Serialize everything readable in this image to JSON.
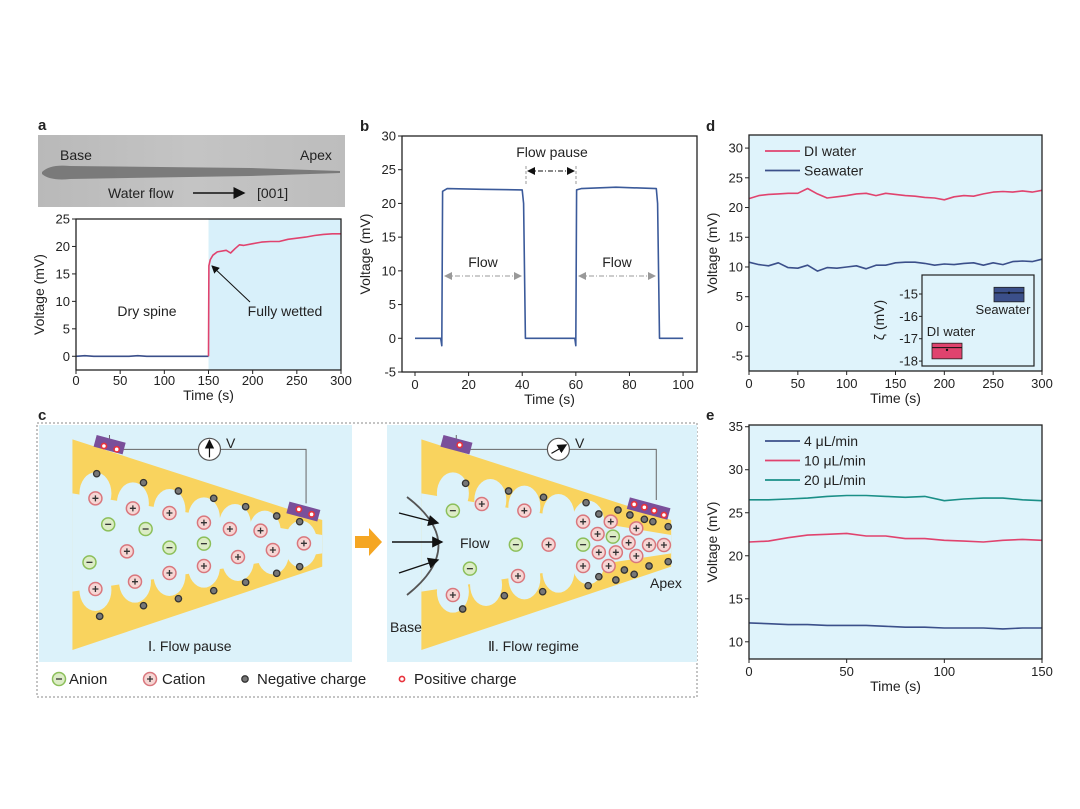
{
  "panel_labels": {
    "a": "a",
    "b": "b",
    "c": "c",
    "d": "d",
    "e": "e"
  },
  "panel_a_image": {
    "base_label": "Base",
    "apex_label": "Apex",
    "flow_label": "Water flow",
    "direction_label": "[001]"
  },
  "panel_c": {
    "stage1_label": "Ⅰ. Flow pause",
    "stage2_label": "Ⅱ. Flow regime",
    "voltmeter_label": "V",
    "flow_label": "Flow",
    "apex_label": "Apex",
    "base_label": "Base",
    "legend": [
      "Anion",
      "Cation",
      "Negative charge",
      "Positive charge"
    ],
    "colors": {
      "spine": "#f9d35e",
      "fluid": "#dcf2fa",
      "anion": "#8cbf5a",
      "cation": "#d9777d",
      "electrode": "#7a4f9a",
      "arrow": "#f5a623"
    }
  },
  "chart_data": [
    {
      "panel": "a",
      "type": "line",
      "xlabel": "Time (s)",
      "ylabel": "Voltage (mV)",
      "xlim": [
        0,
        300
      ],
      "ylim": [
        -2.5,
        25
      ],
      "xticks": [
        0,
        50,
        100,
        150,
        200,
        250,
        300
      ],
      "yticks": [
        0,
        5,
        10,
        15,
        20,
        25
      ],
      "shaded_region": [
        150,
        300
      ],
      "background": "#d8f0fa",
      "annotations": [
        "Dry spine",
        "Fully wetted"
      ],
      "series": [
        {
          "name": "Dry spine",
          "color": "#3b4f8a",
          "x": [
            0,
            10,
            20,
            30,
            40,
            50,
            60,
            70,
            80,
            90,
            100,
            110,
            120,
            130,
            140,
            150
          ],
          "values": [
            0,
            0.1,
            0,
            0,
            0,
            0,
            0,
            0.1,
            0,
            0,
            0,
            0,
            0,
            0,
            0,
            0
          ]
        },
        {
          "name": "Fully wetted",
          "color": "#e0436e",
          "x": [
            150,
            150.5,
            152,
            155,
            160,
            170,
            175,
            180,
            185,
            190,
            200,
            210,
            220,
            230,
            240,
            250,
            260,
            270,
            280,
            290,
            300
          ],
          "values": [
            0,
            16.5,
            17.6,
            18.4,
            19.0,
            19.3,
            18.8,
            19.6,
            20.3,
            20.2,
            20.5,
            20.8,
            20.9,
            20.9,
            21.3,
            21.5,
            21.7,
            22.0,
            22.2,
            22.3,
            22.3
          ]
        }
      ]
    },
    {
      "panel": "b",
      "type": "line",
      "xlabel": "Time (s)",
      "ylabel": "Voltage (mV)",
      "xlim": [
        -4.85,
        105.2
      ],
      "ylim": [
        -5,
        30
      ],
      "xticks": [
        0,
        20,
        40,
        60,
        80,
        100
      ],
      "yticks": [
        -5,
        0,
        5,
        10,
        15,
        20,
        25,
        30
      ],
      "annotations": [
        "Flow pause",
        "Flow",
        "Flow"
      ],
      "series": [
        {
          "name": "Voltage",
          "color": "#3b5a9a",
          "x": [
            0,
            9.6,
            10,
            10.3,
            12,
            25,
            40,
            40.5,
            41.2,
            50,
            59.6,
            60,
            60.3,
            62,
            75,
            90,
            90.5,
            91.2,
            100
          ],
          "values": [
            0,
            0,
            -1.1,
            21.8,
            22.2,
            22.1,
            22.0,
            20.0,
            0,
            0,
            0,
            -1.1,
            22.0,
            22.2,
            22.4,
            22.2,
            20.0,
            0,
            0
          ]
        }
      ]
    },
    {
      "panel": "d",
      "type": "line",
      "xlabel": "Time (s)",
      "ylabel": "Voltage (mV)",
      "xlim": [
        0,
        300
      ],
      "ylim": [
        -7.5,
        32.2
      ],
      "xticks": [
        0,
        50,
        100,
        150,
        200,
        250,
        300
      ],
      "yticks": [
        -5,
        0,
        5,
        10,
        15,
        20,
        25,
        30
      ],
      "background": "#dff3fb",
      "legend_position": "top-left",
      "series": [
        {
          "name": "DI water",
          "color": "#e0436e",
          "x": [
            0,
            10,
            20,
            30,
            40,
            50,
            60,
            70,
            80,
            90,
            100,
            110,
            120,
            130,
            140,
            150,
            160,
            170,
            180,
            190,
            200,
            210,
            220,
            230,
            240,
            250,
            260,
            270,
            280,
            290,
            300
          ],
          "values": [
            21.5,
            22,
            22.2,
            22.3,
            22.4,
            22.4,
            23.2,
            22.3,
            21.6,
            21.8,
            22,
            22.3,
            22.4,
            22,
            22.4,
            22.2,
            22,
            21.9,
            21.7,
            21.6,
            21.3,
            21.8,
            22,
            21.9,
            22.3,
            22.6,
            22.7,
            22.6,
            22.8,
            22.6,
            22.9
          ]
        },
        {
          "name": "Seawater",
          "color": "#3b4f8a",
          "x": [
            0,
            10,
            20,
            30,
            40,
            50,
            60,
            70,
            80,
            90,
            100,
            110,
            120,
            130,
            140,
            150,
            160,
            170,
            180,
            190,
            200,
            210,
            220,
            230,
            240,
            250,
            260,
            270,
            280,
            290,
            300
          ],
          "values": [
            10.8,
            10.4,
            10.2,
            10.7,
            9.9,
            9.8,
            10.3,
            9.3,
            9.9,
            9.8,
            10,
            10.2,
            9.7,
            10.3,
            10.3,
            10.7,
            10.8,
            10.8,
            10.6,
            10.3,
            10.5,
            10.4,
            10.6,
            10.7,
            10.3,
            10.7,
            10.4,
            10.9,
            11,
            10.9,
            11.3
          ]
        }
      ],
      "inset": {
        "type": "box",
        "ylabel": "ζ (mV)",
        "ylim": [
          -18.22,
          -14.15
        ],
        "yticks": [
          -15,
          -16,
          -17,
          -18
        ],
        "boxes": [
          {
            "name": "DI water",
            "color": "#e0436e",
            "q1": -17.9,
            "median": -17.4,
            "q3": -17.2,
            "mean": -17.5
          },
          {
            "name": "Seawater",
            "color": "#3b4f8a",
            "q1": -15.35,
            "median": -14.95,
            "q3": -14.7,
            "mean": -14.95
          }
        ]
      }
    },
    {
      "panel": "e",
      "type": "line",
      "xlabel": "Time (s)",
      "ylabel": "Voltage (mV)",
      "xlim": [
        0,
        150
      ],
      "ylim": [
        8,
        35.2
      ],
      "xticks": [
        0,
        50,
        100,
        150
      ],
      "yticks": [
        10,
        15,
        20,
        25,
        30,
        35
      ],
      "background": "#dff3fb",
      "legend_position": "top-left",
      "series": [
        {
          "name": "4 μL/min",
          "color": "#3b4f8a",
          "x": [
            0,
            10,
            20,
            30,
            40,
            50,
            60,
            70,
            80,
            90,
            100,
            110,
            120,
            130,
            140,
            150
          ],
          "values": [
            12.2,
            12.1,
            12.0,
            12.0,
            11.9,
            11.9,
            11.9,
            11.8,
            11.7,
            11.7,
            11.6,
            11.6,
            11.6,
            11.5,
            11.6,
            11.6
          ]
        },
        {
          "name": "10 μL/min",
          "color": "#e0436e",
          "x": [
            0,
            10,
            20,
            30,
            40,
            50,
            60,
            70,
            80,
            90,
            100,
            110,
            120,
            130,
            140,
            150
          ],
          "values": [
            21.6,
            21.7,
            22.1,
            22.4,
            22.5,
            22.6,
            22.3,
            22.3,
            22.0,
            22.0,
            21.8,
            21.7,
            21.6,
            21.8,
            21.9,
            21.8
          ]
        },
        {
          "name": "20 μL/min",
          "color": "#1a8f87",
          "x": [
            0,
            10,
            20,
            30,
            40,
            50,
            60,
            70,
            80,
            90,
            100,
            110,
            120,
            130,
            140,
            150
          ],
          "values": [
            26.5,
            26.5,
            26.6,
            26.7,
            26.9,
            27.0,
            27.0,
            26.9,
            26.8,
            26.9,
            26.4,
            26.6,
            26.7,
            26.7,
            26.5,
            26.4
          ]
        }
      ]
    }
  ]
}
